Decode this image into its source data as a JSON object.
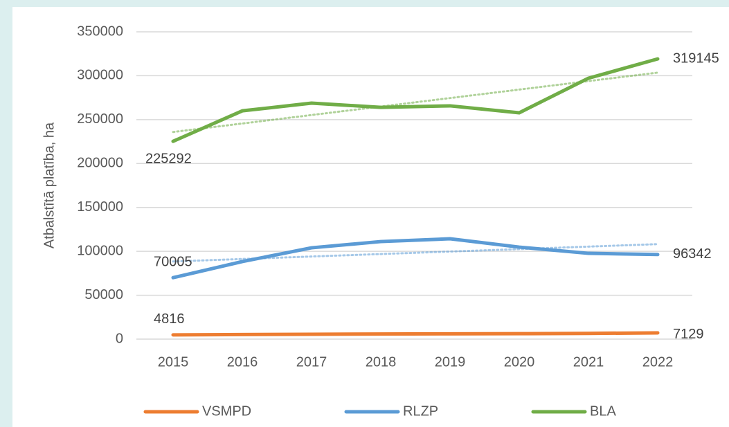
{
  "chart_data": {
    "type": "line",
    "y_label": "Atbalstītā platība, ha",
    "categories": [
      "2015",
      "2016",
      "2017",
      "2018",
      "2019",
      "2020",
      "2021",
      "2022"
    ],
    "series": [
      {
        "name": "VSMPD",
        "color": "#ed7d31",
        "values": [
          4816,
          5200,
          5500,
          5800,
          6000,
          6200,
          6500,
          7129
        ]
      },
      {
        "name": "RLZP",
        "color": "#5b9bd5",
        "values": [
          70005,
          88300,
          104000,
          111100,
          114300,
          104800,
          97700,
          96342
        ]
      },
      {
        "name": "BLA",
        "color": "#70ad47",
        "values": [
          225292,
          260000,
          268800,
          264000,
          265700,
          257800,
          297200,
          319145
        ]
      }
    ],
    "ylim": [
      0,
      350000
    ],
    "yticks": [
      0,
      50000,
      100000,
      150000,
      200000,
      250000,
      300000,
      350000
    ],
    "grid": true,
    "trendline": true,
    "legend": "bottom"
  }
}
